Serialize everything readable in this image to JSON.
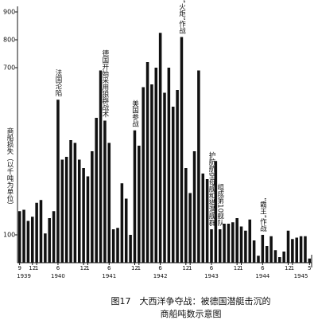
{
  "chart_data": {
    "type": "bar",
    "y_label": "商船损失（以千吨为单位）",
    "caption": [
      "图17　大西洋争夺战：被德国潜艇击沉的",
      "商船吨数示意图"
    ],
    "color": "#111111",
    "ylim": [
      0,
      900
    ],
    "yticks": [
      100,
      700,
      800,
      900
    ],
    "categories": [
      "9",
      null,
      null,
      "12",
      "1",
      null,
      null,
      null,
      null,
      "6",
      null,
      null,
      null,
      null,
      null,
      "12",
      "1",
      null,
      null,
      null,
      null,
      "6",
      null,
      null,
      null,
      null,
      null,
      "12",
      "1",
      null,
      null,
      null,
      null,
      "6",
      null,
      null,
      null,
      null,
      null,
      "12",
      "1",
      null,
      null,
      null,
      null,
      "6",
      null,
      null,
      null,
      null,
      null,
      "12",
      "1",
      null,
      null,
      null,
      null,
      "6",
      null,
      null,
      null,
      null,
      null,
      "12",
      "1",
      null,
      null,
      null,
      "5"
    ],
    "years": [
      null,
      "1939",
      null,
      null,
      null,
      null,
      null,
      null,
      null,
      "1940",
      null,
      null,
      null,
      null,
      null,
      null,
      null,
      null,
      null,
      null,
      null,
      "1941",
      null,
      null,
      null,
      null,
      null,
      null,
      null,
      null,
      null,
      null,
      null,
      "1942",
      null,
      null,
      null,
      null,
      null,
      null,
      null,
      null,
      null,
      null,
      null,
      "1943",
      null,
      null,
      null,
      null,
      null,
      null,
      null,
      null,
      null,
      null,
      null,
      "1944",
      null,
      null,
      null,
      null,
      null,
      null,
      null,
      null,
      "1945",
      null,
      null
    ],
    "annotations": [
      null,
      null,
      null,
      null,
      null,
      null,
      null,
      null,
      null,
      "法国沦陷",
      null,
      null,
      null,
      null,
      null,
      null,
      null,
      null,
      null,
      null,
      "德国开始采用狼群战术",
      null,
      null,
      null,
      null,
      null,
      null,
      "美国参战",
      null,
      null,
      null,
      null,
      null,
      null,
      null,
      null,
      null,
      null,
      "“火炬”作战",
      null,
      null,
      null,
      null,
      null,
      null,
      "护航航空母舰和猎潜舰群",
      null,
      "组成第10舰队",
      null,
      null,
      null,
      null,
      null,
      null,
      null,
      null,
      null,
      "“霸王”作战",
      null,
      null,
      null,
      null,
      null,
      null,
      null,
      null,
      null,
      null,
      null
    ],
    "values": [
      185,
      190,
      150,
      165,
      215,
      225,
      105,
      160,
      185,
      585,
      370,
      380,
      440,
      430,
      370,
      340,
      310,
      400,
      520,
      690,
      510,
      430,
      120,
      125,
      285,
      230,
      100,
      475,
      420,
      630,
      720,
      640,
      700,
      825,
      610,
      700,
      560,
      620,
      810,
      340,
      250,
      400,
      690,
      320,
      300,
      120,
      365,
      120,
      140,
      140,
      145,
      160,
      130,
      115,
      155,
      80,
      25,
      100,
      60,
      95,
      45,
      20,
      40,
      115,
      85,
      90,
      95,
      95,
      15
    ]
  }
}
